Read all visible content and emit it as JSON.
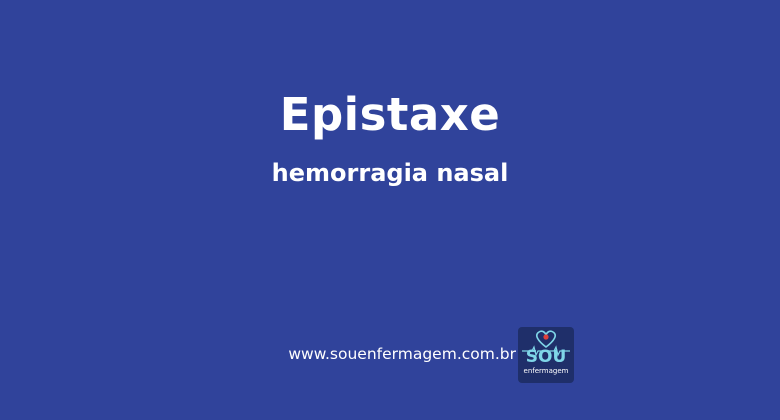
{
  "banner": {
    "title": "Epistaxe",
    "subtitle": "hemorragia nasal",
    "website": "www.souenfermagem.com.br",
    "background_color": "#30439b",
    "text_color": "#ffffff"
  },
  "logo": {
    "word": "SOU",
    "subword": "enfermagem",
    "icon": "heart-heartbeat-icon",
    "background_color": "#1f2f6a",
    "accent_color": "#7fd6e8",
    "heart_color": "#e0403a"
  }
}
